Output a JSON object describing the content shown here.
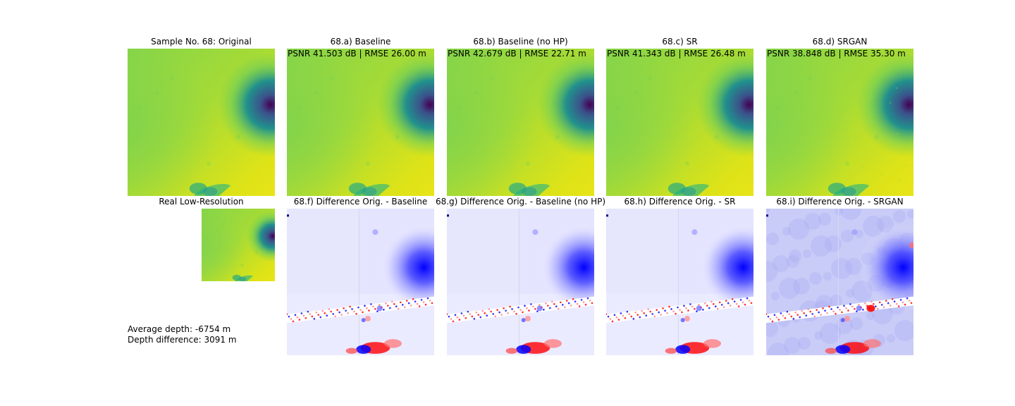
{
  "figure": {
    "row1": [
      {
        "title": "Sample No. 68: Original",
        "metric": ""
      },
      {
        "title": "68.a) Baseline",
        "metric": "PSNR 41.503 dB | RMSE 26.00 m"
      },
      {
        "title": "68.b) Baseline (no HP)",
        "metric": "PSNR 42.679 dB | RMSE 22.71 m"
      },
      {
        "title": "68.c) SR",
        "metric": "PSNR 41.343 dB | RMSE 26.48 m"
      },
      {
        "title": "68.d) SRGAN",
        "metric": "PSNR 38.848 dB | RMSE 35.30 m"
      }
    ],
    "row2": [
      {
        "title": "Real Low-Resolution"
      },
      {
        "title": "68.f) Difference Orig. - Baseline"
      },
      {
        "title": "68.g) Difference Orig. - Baseline (no HP)"
      },
      {
        "title": "68.h) Difference Orig. - SR"
      },
      {
        "title": "68.i) Difference Orig. - SRGAN"
      }
    ],
    "notes": {
      "average_depth": "Average depth: -6754 m",
      "depth_difference": "Depth difference: 3091 m"
    }
  },
  "colors": {
    "viridis_high": "#e7e419",
    "viridis_mid": "#7ad151",
    "viridis_low": "#440154",
    "seismic_pos": "#ff0000",
    "seismic_zero": "#ffffff",
    "seismic_neg": "#0000ff"
  },
  "chart_data": [
    {
      "type": "heatmap",
      "title": "Sample No. 68: Original",
      "colormap": "viridis"
    },
    {
      "type": "heatmap",
      "title": "68.a) Baseline",
      "colormap": "viridis",
      "psnr_db": 41.503,
      "rmse_m": 26.0
    },
    {
      "type": "heatmap",
      "title": "68.b) Baseline (no HP)",
      "colormap": "viridis",
      "psnr_db": 42.679,
      "rmse_m": 22.71
    },
    {
      "type": "heatmap",
      "title": "68.c) SR",
      "colormap": "viridis",
      "psnr_db": 41.343,
      "rmse_m": 26.48
    },
    {
      "type": "heatmap",
      "title": "68.d) SRGAN",
      "colormap": "viridis",
      "psnr_db": 38.848,
      "rmse_m": 35.3
    },
    {
      "type": "heatmap",
      "title": "Real Low-Resolution",
      "colormap": "viridis"
    },
    {
      "type": "heatmap",
      "title": "68.f) Difference Orig. - Baseline",
      "colormap": "seismic"
    },
    {
      "type": "heatmap",
      "title": "68.g) Difference Orig. - Baseline (no HP)",
      "colormap": "seismic"
    },
    {
      "type": "heatmap",
      "title": "68.h) Difference Orig. - SR",
      "colormap": "seismic"
    },
    {
      "type": "heatmap",
      "title": "68.i) Difference Orig. - SRGAN",
      "colormap": "seismic"
    }
  ]
}
